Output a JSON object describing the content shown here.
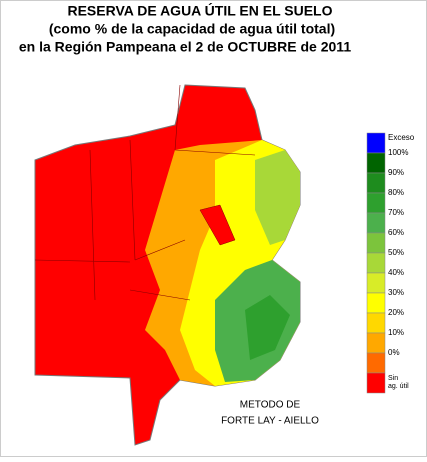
{
  "title": {
    "lines": [
      "RESERVA DE AGUA ÚTIL EN EL SUELO",
      "(como % de la capacidad de agua útil total)",
      "en la Región Pampeana el 2 de OCTUBRE de 2011"
    ]
  },
  "legend": {
    "items": [
      {
        "label": "Exceso",
        "color": "#0000ff"
      },
      {
        "label": "100%",
        "color": "#006400"
      },
      {
        "label": "90%",
        "color": "#1e8c1e"
      },
      {
        "label": "80%",
        "color": "#2ea02e"
      },
      {
        "label": "70%",
        "color": "#4cb04c"
      },
      {
        "label": "60%",
        "color": "#7cc43c"
      },
      {
        "label": "50%",
        "color": "#a8d838"
      },
      {
        "label": "40%",
        "color": "#d8ec28"
      },
      {
        "label": "30%",
        "color": "#ffff00"
      },
      {
        "label": "20%",
        "color": "#ffd800"
      },
      {
        "label": "10%",
        "color": "#ffa800"
      },
      {
        "label": "0%",
        "color": "#ff6a00"
      }
    ],
    "no_water": {
      "lines": [
        "Sin",
        "ag. útil"
      ],
      "color": "#ff0000"
    }
  },
  "note": {
    "lines": [
      "METODO DE",
      "FORTE LAY - AIELLO"
    ]
  }
}
